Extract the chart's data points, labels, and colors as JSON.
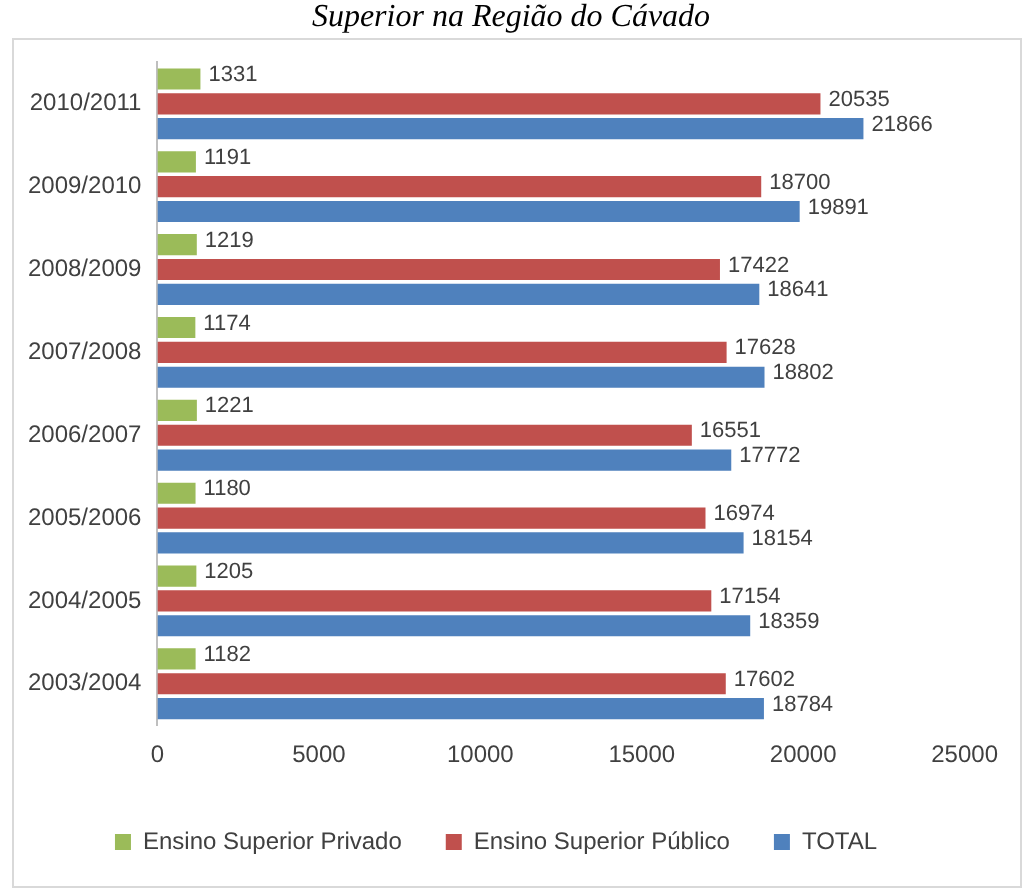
{
  "chart_data": {
    "type": "bar",
    "orientation": "horizontal",
    "title": "Superior na Região do Cávado",
    "categories": [
      "2010/2011",
      "2009/2010",
      "2008/2009",
      "2007/2008",
      "2006/2007",
      "2005/2006",
      "2004/2005",
      "2003/2004"
    ],
    "series": [
      {
        "name": "Ensino Superior Privado",
        "color": "#9bbb59",
        "values": [
          1331,
          1191,
          1219,
          1174,
          1221,
          1180,
          1205,
          1182
        ]
      },
      {
        "name": "Ensino Superior Público",
        "color": "#c0504d",
        "values": [
          20535,
          18700,
          17422,
          17628,
          16551,
          16974,
          17154,
          17602
        ]
      },
      {
        "name": "TOTAL",
        "color": "#4f81bd",
        "values": [
          21866,
          19891,
          18641,
          18802,
          17772,
          18154,
          18359,
          18784
        ]
      }
    ],
    "xlim": [
      0,
      25000
    ],
    "xticks": [
      0,
      5000,
      10000,
      15000,
      20000,
      25000
    ],
    "data_labels": true,
    "legend": "bottom",
    "grid": false
  }
}
